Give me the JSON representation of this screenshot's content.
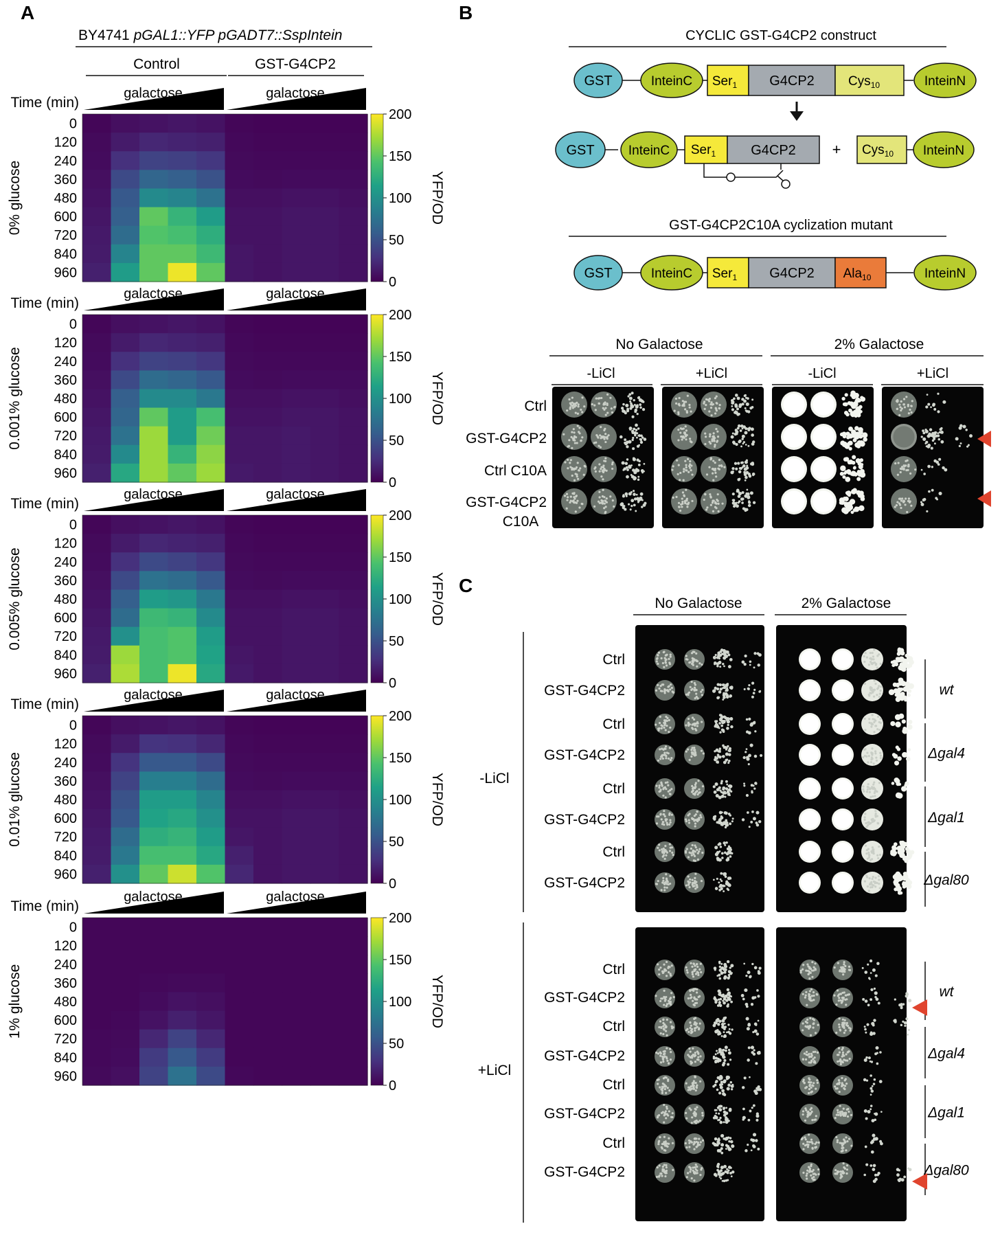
{
  "panel_a": {
    "letter": "A",
    "strain_prefix": "BY4741 ",
    "strain_italic": "pGAL1::YFP pGADT7::SspIntein",
    "groups": [
      "Control",
      "GST-G4CP2"
    ],
    "galactose_label": "galactose",
    "time_label": "Time (min)",
    "times": [
      "0",
      "120",
      "240",
      "360",
      "480",
      "600",
      "720",
      "840",
      "960"
    ],
    "colorbar_label": "YFP/OD",
    "colorbar_ticks": [
      "200",
      "150",
      "100",
      "50",
      "0"
    ],
    "colorscale": [
      "#440154",
      "#46327e",
      "#365c8d",
      "#277f8e",
      "#1fa187",
      "#4ac16d",
      "#a0da39",
      "#fde725"
    ],
    "heatmaps": [
      {
        "condition": "0% glucose",
        "rows": [
          [
            3,
            8,
            10,
            12,
            10,
            3,
            2,
            2,
            2,
            2
          ],
          [
            5,
            15,
            22,
            20,
            18,
            4,
            3,
            3,
            3,
            3
          ],
          [
            6,
            28,
            40,
            38,
            32,
            5,
            4,
            4,
            4,
            4
          ],
          [
            8,
            45,
            65,
            60,
            50,
            6,
            5,
            6,
            6,
            6
          ],
          [
            10,
            55,
            95,
            90,
            75,
            8,
            8,
            10,
            10,
            8
          ],
          [
            12,
            60,
            150,
            130,
            110,
            10,
            10,
            12,
            12,
            10
          ],
          [
            14,
            70,
            145,
            140,
            125,
            10,
            10,
            12,
            12,
            10
          ],
          [
            15,
            90,
            150,
            150,
            135,
            12,
            10,
            12,
            12,
            10
          ],
          [
            18,
            110,
            150,
            195,
            150,
            12,
            10,
            12,
            12,
            10
          ]
        ]
      },
      {
        "condition": "0.001% glucose",
        "rows": [
          [
            3,
            8,
            10,
            12,
            10,
            3,
            2,
            2,
            2,
            2
          ],
          [
            5,
            15,
            22,
            20,
            18,
            4,
            3,
            3,
            3,
            3
          ],
          [
            6,
            28,
            40,
            38,
            32,
            5,
            4,
            4,
            4,
            4
          ],
          [
            8,
            45,
            70,
            65,
            55,
            6,
            5,
            6,
            6,
            6
          ],
          [
            10,
            60,
            95,
            95,
            80,
            8,
            8,
            10,
            10,
            8
          ],
          [
            12,
            65,
            150,
            110,
            140,
            10,
            10,
            12,
            12,
            10
          ],
          [
            14,
            75,
            170,
            110,
            155,
            12,
            12,
            14,
            12,
            10
          ],
          [
            15,
            95,
            170,
            130,
            165,
            12,
            12,
            14,
            12,
            10
          ],
          [
            18,
            120,
            170,
            150,
            170,
            14,
            12,
            14,
            12,
            10
          ]
        ]
      },
      {
        "condition": "0.005% glucose",
        "rows": [
          [
            3,
            8,
            10,
            12,
            10,
            3,
            2,
            2,
            2,
            2
          ],
          [
            5,
            15,
            22,
            20,
            18,
            4,
            3,
            3,
            3,
            3
          ],
          [
            6,
            28,
            45,
            40,
            32,
            5,
            4,
            4,
            4,
            4
          ],
          [
            8,
            45,
            75,
            70,
            55,
            6,
            5,
            6,
            6,
            6
          ],
          [
            10,
            60,
            110,
            105,
            80,
            8,
            8,
            10,
            10,
            8
          ],
          [
            12,
            70,
            135,
            130,
            95,
            10,
            10,
            12,
            12,
            10
          ],
          [
            14,
            100,
            140,
            145,
            110,
            10,
            10,
            12,
            12,
            10
          ],
          [
            15,
            170,
            140,
            145,
            115,
            12,
            10,
            12,
            12,
            10
          ],
          [
            18,
            175,
            140,
            195,
            120,
            14,
            10,
            12,
            12,
            10
          ]
        ]
      },
      {
        "condition": "0.01% glucose",
        "rows": [
          [
            3,
            8,
            10,
            12,
            10,
            3,
            2,
            2,
            2,
            2
          ],
          [
            5,
            15,
            30,
            28,
            22,
            4,
            3,
            3,
            3,
            3
          ],
          [
            6,
            30,
            55,
            55,
            45,
            5,
            4,
            4,
            4,
            4
          ],
          [
            8,
            40,
            85,
            85,
            70,
            6,
            5,
            6,
            6,
            6
          ],
          [
            10,
            50,
            110,
            110,
            90,
            8,
            8,
            10,
            10,
            8
          ],
          [
            12,
            55,
            115,
            120,
            100,
            10,
            10,
            12,
            12,
            10
          ],
          [
            14,
            70,
            125,
            130,
            110,
            12,
            10,
            12,
            12,
            10
          ],
          [
            15,
            80,
            140,
            140,
            120,
            18,
            10,
            12,
            12,
            10
          ],
          [
            18,
            100,
            150,
            185,
            145,
            22,
            10,
            12,
            12,
            10
          ]
        ]
      },
      {
        "condition": "1% glucose",
        "rows": [
          [
            3,
            3,
            3,
            3,
            3,
            3,
            3,
            3,
            3,
            3
          ],
          [
            3,
            3,
            3,
            3,
            3,
            3,
            3,
            3,
            3,
            3
          ],
          [
            3,
            3,
            3,
            3,
            3,
            3,
            3,
            3,
            3,
            3
          ],
          [
            3,
            3,
            4,
            5,
            5,
            3,
            3,
            3,
            3,
            3
          ],
          [
            3,
            3,
            6,
            10,
            8,
            3,
            3,
            3,
            3,
            3
          ],
          [
            3,
            4,
            10,
            18,
            12,
            3,
            3,
            3,
            3,
            3
          ],
          [
            4,
            5,
            22,
            40,
            22,
            3,
            3,
            3,
            3,
            3
          ],
          [
            4,
            6,
            35,
            55,
            35,
            3,
            3,
            3,
            3,
            3
          ],
          [
            5,
            8,
            40,
            75,
            45,
            4,
            3,
            3,
            3,
            3
          ]
        ]
      }
    ]
  },
  "panel_b": {
    "letter": "B",
    "construct_title": "CYCLIC GST-G4CP2 construct",
    "mutant_title": "GST-G4CP2C10A cyclization mutant",
    "gst": "GST",
    "intein_c": "InteinC",
    "intein_n": "InteinN",
    "ser": "Ser",
    "ser_sub": "1",
    "g4cp2": "G4CP2",
    "cys": "Cys",
    "cys_sub": "10",
    "ala": "Ala",
    "ala_sub": "10",
    "plus": "+",
    "colors": {
      "gst": "#6bbfcc",
      "intein": "#b8cc2e",
      "ser": "#f5e93a",
      "g4cp2": "#a4aab0",
      "cys": "#e3e57a",
      "ala": "#ea7b3a"
    },
    "plate_groups": [
      "No Galactose",
      "2% Galactose"
    ],
    "licl": [
      "-LiCl",
      "+LiCl",
      "-LiCl",
      "+LiCl"
    ],
    "rows": [
      "Ctrl",
      "GST-G4CP2",
      "Ctrl C10A",
      "GST-G4CP2"
    ],
    "row4_line2": "C10A"
  },
  "panel_c": {
    "letter": "C",
    "plate_groups": [
      "No Galactose",
      "2% Galactose"
    ],
    "conditions": [
      "-LiCl",
      "+LiCl"
    ],
    "rows": [
      "Ctrl",
      "GST-G4CP2",
      "Ctrl",
      "GST-G4CP2",
      "Ctrl",
      "GST-G4CP2",
      "Ctrl",
      "GST-G4CP2"
    ],
    "strains": [
      "wt",
      "Δgal4",
      "Δgal1",
      "Δgal80"
    ]
  },
  "arrow_color": "#e0442e"
}
